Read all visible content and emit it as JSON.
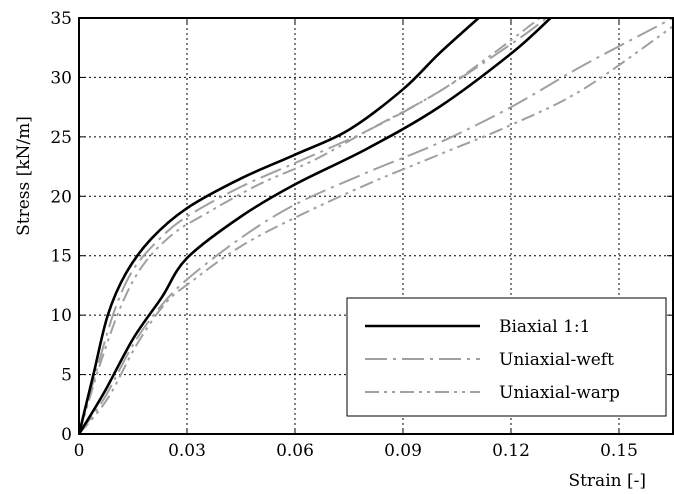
{
  "chart_data": {
    "type": "line",
    "title": "",
    "xlabel": "Strain [-]",
    "ylabel": "Stress [kN/m]",
    "xlim": [
      0,
      0.165
    ],
    "ylim": [
      0,
      35
    ],
    "xticks": [
      0,
      0.03,
      0.06,
      0.09,
      0.12,
      0.15
    ],
    "xtick_labels": [
      "0",
      "0.03",
      "0.06",
      "0.09",
      "0.12",
      "0.15"
    ],
    "yticks": [
      0,
      5,
      10,
      15,
      20,
      25,
      30,
      35
    ],
    "ytick_labels": [
      "0",
      "5",
      "10",
      "15",
      "20",
      "25",
      "30",
      "35"
    ],
    "grid": true,
    "legend_position": "bottom-right",
    "series": [
      {
        "name": "Biaxial 1:1",
        "style": "solid",
        "color": "#000000",
        "curves": [
          [
            [
              0,
              0
            ],
            [
              0.004,
              5
            ],
            [
              0.008,
              10
            ],
            [
              0.013,
              13.5
            ],
            [
              0.02,
              16.4
            ],
            [
              0.03,
              19.0
            ],
            [
              0.045,
              21.5
            ],
            [
              0.06,
              23.5
            ],
            [
              0.075,
              25.6
            ],
            [
              0.09,
              29.0
            ],
            [
              0.1,
              32.0
            ],
            [
              0.111,
              35
            ]
          ],
          [
            [
              0,
              0
            ],
            [
              0.007,
              3.5
            ],
            [
              0.015,
              8.0
            ],
            [
              0.023,
              11.5
            ],
            [
              0.03,
              14.8
            ],
            [
              0.045,
              18.3
            ],
            [
              0.06,
              21.0
            ],
            [
              0.08,
              24.0
            ],
            [
              0.1,
              27.5
            ],
            [
              0.12,
              32.0
            ],
            [
              0.131,
              35
            ]
          ]
        ]
      },
      {
        "name": "Uniaxial-weft",
        "style": "dashdot",
        "color": "#a0a0a0",
        "curves": [
          [
            [
              0,
              0
            ],
            [
              0.005,
              5.5
            ],
            [
              0.01,
              10.5
            ],
            [
              0.015,
              13.8
            ],
            [
              0.022,
              16.3
            ],
            [
              0.03,
              18.3
            ],
            [
              0.045,
              20.8
            ],
            [
              0.06,
              22.8
            ],
            [
              0.08,
              25.5
            ],
            [
              0.1,
              28.8
            ],
            [
              0.12,
              32.8
            ],
            [
              0.13,
              35
            ]
          ],
          [
            [
              0,
              0
            ],
            [
              0.007,
              3.0
            ],
            [
              0.015,
              7.5
            ],
            [
              0.022,
              10.5
            ],
            [
              0.03,
              13.0
            ],
            [
              0.045,
              16.5
            ],
            [
              0.06,
              19.3
            ],
            [
              0.08,
              22.0
            ],
            [
              0.1,
              24.5
            ],
            [
              0.12,
              27.5
            ],
            [
              0.14,
              31.0
            ],
            [
              0.165,
              35
            ]
          ]
        ]
      },
      {
        "name": "Uniaxial-warp",
        "style": "dashdotdot",
        "color": "#a0a0a0",
        "curves": [
          [
            [
              0,
              0
            ],
            [
              0.006,
              6.0
            ],
            [
              0.012,
              11.0
            ],
            [
              0.018,
              14.3
            ],
            [
              0.026,
              16.8
            ],
            [
              0.035,
              18.5
            ],
            [
              0.05,
              21.0
            ],
            [
              0.065,
              23.0
            ],
            [
              0.08,
              25.5
            ],
            [
              0.1,
              28.8
            ],
            [
              0.115,
              32.0
            ],
            [
              0.128,
              35
            ]
          ],
          [
            [
              0,
              0
            ],
            [
              0.008,
              3.0
            ],
            [
              0.016,
              7.5
            ],
            [
              0.024,
              11.0
            ],
            [
              0.032,
              13.0
            ],
            [
              0.045,
              15.8
            ],
            [
              0.06,
              18.2
            ],
            [
              0.08,
              21.0
            ],
            [
              0.1,
              23.5
            ],
            [
              0.12,
              26.0
            ],
            [
              0.14,
              29.0
            ],
            [
              0.165,
              34.3
            ]
          ]
        ]
      }
    ]
  }
}
